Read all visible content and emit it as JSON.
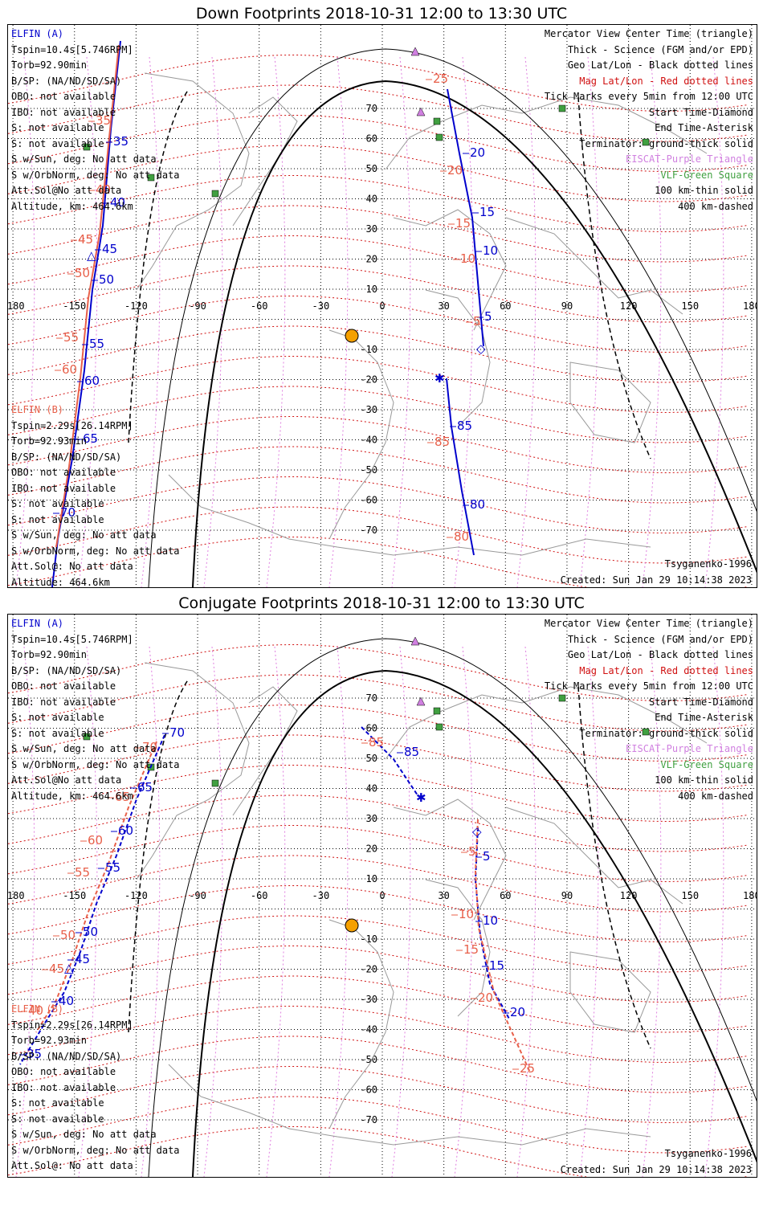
{
  "titles": {
    "down": "Down Footprints 2018-10-31 12:00 to 13:30 UTC",
    "conj": "Conjugate Footprints 2018-10-31 12:00 to 13:30 UTC"
  },
  "elfin_a": {
    "name": "ELFIN (A)",
    "lines": [
      "Tspin=10.4s[5.746RPM]",
      "Torb=92.90min",
      "B/SP: (NA/ND/SD/SA)",
      "OBO: not available",
      "IBO: not available",
      "S: not available",
      "S: not available",
      "S w/Sun, deg: No att data",
      "S w/OrbNorm, deg: No att data",
      "Att.Sol@No att data"
    ],
    "altitude": "Altitude, km: 464.6km"
  },
  "elfin_b": {
    "name": "ELFIN (B)",
    "lines": [
      "Tspin=2.29s[26.14RPM]",
      "Torb=92.93min",
      "B/SP: (NA/ND/SD/SA)",
      "OBO: not available",
      "IBO: not available",
      "S: not available",
      "S: not available",
      "S w/Sun, deg: No att data",
      "S w/OrbNorm, deg: No att data",
      "Att.Sol@: No att data"
    ],
    "altitude": "Altitude: 464.6km"
  },
  "legend": [
    {
      "text": "Mercator View Center Time (triangle)",
      "color": "#000000"
    },
    {
      "text": "Thick - Science (FGM and/or EPD)",
      "color": "#000000"
    },
    {
      "text": "Geo Lat/Lon - Black dotted lines",
      "color": "#000000"
    },
    {
      "text": "Mag Lat/Lon - Red dotted lines",
      "color": "#d01010"
    },
    {
      "text": "Tick Marks every 5min from 12:00 UTC",
      "color": "#000000"
    },
    {
      "text": "Start Time-Diamond",
      "color": "#000000"
    },
    {
      "text": "End Time-Asterisk",
      "color": "#000000"
    },
    {
      "text": "Terminator: ground-thick solid",
      "color": "#000000"
    },
    {
      "text": "EISCAT-Purple Triangle",
      "color": "#d080e0"
    },
    {
      "text": "VLF-Green Square",
      "color": "#40a040"
    },
    {
      "text": "100 km-thin solid",
      "color": "#000000"
    },
    {
      "text": "400 km-dashed",
      "color": "#000000"
    }
  ],
  "model": "Tsyganenko-1996",
  "created": "Created: Sun Jan 29 10:14:38 2023",
  "axes": {
    "lon_ticks": [
      "-180",
      "-150",
      "-120",
      "-90",
      "-60",
      "-30",
      "0",
      "30",
      "60",
      "90",
      "120",
      "150",
      "180"
    ],
    "lat_ticks": [
      "70",
      "60",
      "50",
      "40",
      "30",
      "20",
      "10",
      "-10",
      "-20",
      "-30",
      "-40",
      "-50",
      "-60",
      "-70"
    ]
  },
  "colors": {
    "elfin_a": "#0000cc",
    "elfin_b": "#e8604a",
    "mag_grid": "#d01010",
    "geo_grid": "#000000",
    "sun": "#f5a000"
  },
  "down_tracks": {
    "a_west_labels": [
      "35",
      "40",
      "45",
      "50",
      "55",
      "60",
      "65",
      "70"
    ],
    "b_west_labels": [
      "35",
      "40",
      "45",
      "50",
      "55",
      "60"
    ],
    "a_east_labels": [
      "5",
      "10",
      "15",
      "20",
      "80",
      "85"
    ],
    "b_east_labels": [
      "25",
      "20",
      "15",
      "10",
      "5",
      "85",
      "80"
    ]
  },
  "conj_tracks": {
    "a_west_labels": [
      "70",
      "65",
      "60",
      "55",
      "50",
      "45",
      "40",
      "35"
    ],
    "b_west_labels": [
      "70",
      "65",
      "60",
      "55",
      "50",
      "45",
      "40"
    ],
    "a_east_labels": [
      "85",
      "5",
      "10",
      "15",
      "20"
    ],
    "b_east_labels": [
      "85",
      "5",
      "10",
      "15",
      "20",
      "25"
    ]
  }
}
